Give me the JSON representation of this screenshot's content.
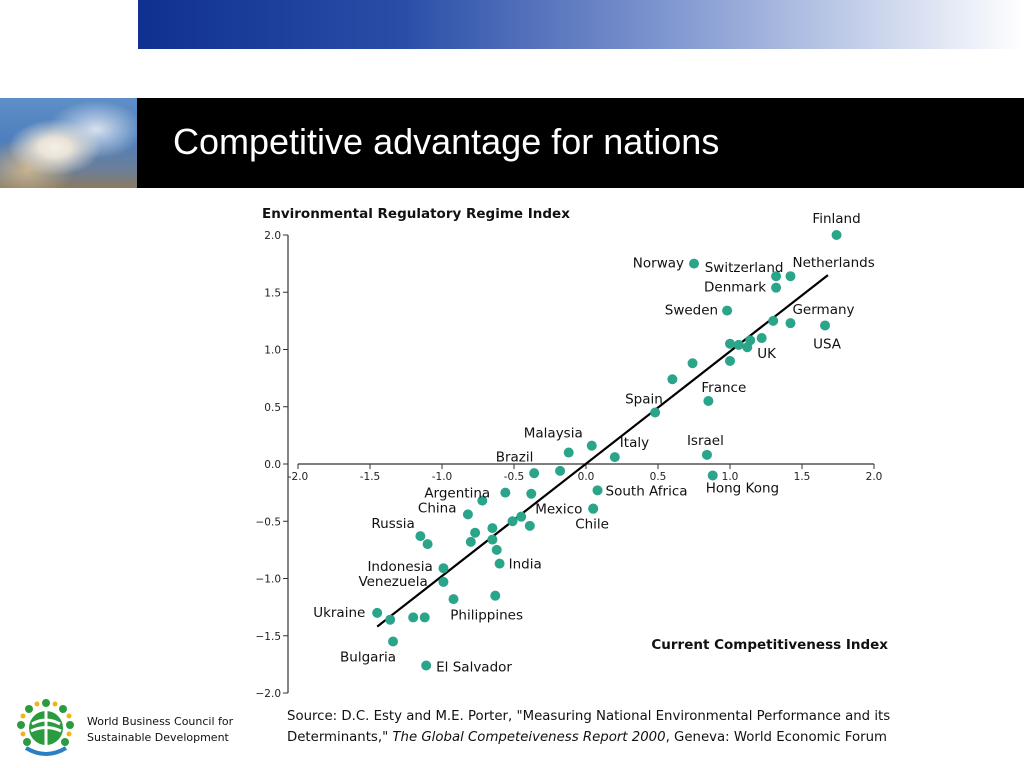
{
  "slide": {
    "title": "Competitive advantage for nations"
  },
  "source": {
    "prefix": "Source: D.C. Esty and M.E. Porter, \"Measuring National Environmental Performance and its Determinants,\"",
    "publication": "The Global Competeiveness Report 2000",
    "suffix": ", Geneva: World Economic Forum"
  },
  "organization": {
    "line1": "World Business Council for",
    "line2": "Sustainable Development"
  },
  "colors": {
    "point": "#2aa58a",
    "trend_line": "#000000",
    "top_bar_start": "#10308f",
    "title_bar": "#000000"
  },
  "chart_data": {
    "type": "scatter",
    "ylabel": "Environmental Regulatory Regime Index",
    "xlabel": "Current Competitiveness Index",
    "xlim": [
      -2.0,
      2.0
    ],
    "ylim": [
      -2.0,
      2.0
    ],
    "x_ticks": [
      "-2.0",
      "-1.5",
      "-1.0",
      "-0.5",
      "0.0",
      "0.5",
      "1.0",
      "1.5",
      "2.0"
    ],
    "x_tick_values": [
      -2.0,
      -1.5,
      -1.0,
      -0.5,
      0.0,
      0.5,
      1.0,
      1.5,
      2.0
    ],
    "y_ticks": [
      "2.0",
      "1.5",
      "1.0",
      "0.5",
      "0.0",
      "−0.5",
      "−1.0",
      "−1.5",
      "−2.0"
    ],
    "y_tick_values": [
      2.0,
      1.5,
      1.0,
      0.5,
      0.0,
      -0.5,
      -1.0,
      -1.5,
      -2.0
    ],
    "grid": false,
    "trend_line": {
      "x": [
        -1.45,
        1.68
      ],
      "y": [
        -1.42,
        1.65
      ]
    },
    "points": [
      {
        "label": "Finland",
        "x": 1.74,
        "y": 2.0
      },
      {
        "label": "Norway",
        "x": 0.75,
        "y": 1.75
      },
      {
        "label": "Switzerland",
        "x": 1.32,
        "y": 1.64
      },
      {
        "label": "Netherlands",
        "x": 1.42,
        "y": 1.64
      },
      {
        "label": "Denmark",
        "x": 1.32,
        "y": 1.54
      },
      {
        "label": "Sweden",
        "x": 0.98,
        "y": 1.34
      },
      {
        "label": "Germany",
        "x": 1.42,
        "y": 1.23
      },
      {
        "label": "USA",
        "x": 1.66,
        "y": 1.21
      },
      {
        "label": "UK",
        "x": 1.12,
        "y": 1.02
      },
      {
        "label": "France",
        "x": 0.85,
        "y": 0.55
      },
      {
        "label": "Spain",
        "x": 0.48,
        "y": 0.45
      },
      {
        "label": "Israel",
        "x": 0.84,
        "y": 0.08
      },
      {
        "label": "Italy",
        "x": 0.2,
        "y": 0.06
      },
      {
        "label": "Malaysia",
        "x": 0.04,
        "y": 0.16
      },
      {
        "label": "Brazil",
        "x": -0.12,
        "y": 0.1
      },
      {
        "label": "Hong Kong",
        "x": 0.88,
        "y": -0.1
      },
      {
        "label": "South Africa",
        "x": 0.08,
        "y": -0.23
      },
      {
        "label": "Argentina",
        "x": -0.72,
        "y": -0.32
      },
      {
        "label": "Mexico",
        "x": 0.05,
        "y": -0.39
      },
      {
        "label": "Chile",
        "x": 0.05,
        "y": -0.39
      },
      {
        "label": "China",
        "x": -0.82,
        "y": -0.44
      },
      {
        "label": "Russia",
        "x": -1.15,
        "y": -0.63
      },
      {
        "label": "India",
        "x": -0.6,
        "y": -0.87
      },
      {
        "label": "Indonesia",
        "x": -0.99,
        "y": -0.91
      },
      {
        "label": "Venezuela",
        "x": -0.99,
        "y": -1.03
      },
      {
        "label": "Philippines",
        "x": -0.63,
        "y": -1.15
      },
      {
        "label": "Ukraine",
        "x": -1.45,
        "y": -1.3
      },
      {
        "label": "Bulgaria",
        "x": -1.34,
        "y": -1.55
      },
      {
        "label": "El Salvador",
        "x": -1.11,
        "y": -1.76
      },
      {
        "label": "",
        "x": 1.0,
        "y": 1.05
      },
      {
        "label": "",
        "x": 1.06,
        "y": 1.04
      },
      {
        "label": "",
        "x": 1.14,
        "y": 1.08
      },
      {
        "label": "",
        "x": 1.22,
        "y": 1.1
      },
      {
        "label": "",
        "x": 1.3,
        "y": 1.25
      },
      {
        "label": "",
        "x": 1.0,
        "y": 0.9
      },
      {
        "label": "",
        "x": 0.74,
        "y": 0.88
      },
      {
        "label": "",
        "x": 0.6,
        "y": 0.74
      },
      {
        "label": "",
        "x": -0.36,
        "y": -0.08
      },
      {
        "label": "",
        "x": -0.18,
        "y": -0.06
      },
      {
        "label": "",
        "x": -0.38,
        "y": -0.26
      },
      {
        "label": "",
        "x": -0.56,
        "y": -0.25
      },
      {
        "label": "",
        "x": -0.45,
        "y": -0.46
      },
      {
        "label": "",
        "x": -0.51,
        "y": -0.5
      },
      {
        "label": "",
        "x": -0.39,
        "y": -0.54
      },
      {
        "label": "",
        "x": -0.65,
        "y": -0.56
      },
      {
        "label": "",
        "x": -0.77,
        "y": -0.6
      },
      {
        "label": "",
        "x": -0.65,
        "y": -0.66
      },
      {
        "label": "",
        "x": -0.8,
        "y": -0.68
      },
      {
        "label": "",
        "x": -0.62,
        "y": -0.75
      },
      {
        "label": "",
        "x": -1.1,
        "y": -0.7
      },
      {
        "label": "",
        "x": -0.92,
        "y": -1.18
      },
      {
        "label": "",
        "x": -1.36,
        "y": -1.36
      },
      {
        "label": "",
        "x": -1.2,
        "y": -1.34
      },
      {
        "label": "",
        "x": -1.12,
        "y": -1.34
      }
    ]
  }
}
